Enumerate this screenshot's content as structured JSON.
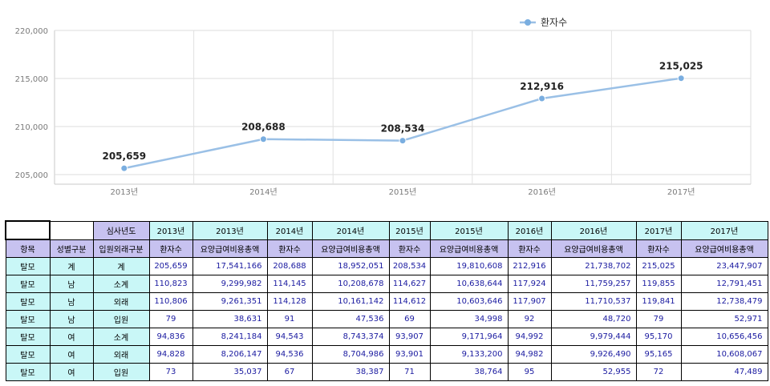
{
  "chart_data": {
    "type": "line",
    "x": [
      "2013년",
      "2014년",
      "2015년",
      "2016년",
      "2017년"
    ],
    "series": [
      {
        "name": "환자수",
        "values": [
          205659,
          208688,
          208534,
          212916,
          215025
        ]
      }
    ],
    "data_labels": [
      "205,659",
      "208,688",
      "208,534",
      "212,916",
      "215,025"
    ],
    "ylim": [
      204000,
      220000
    ],
    "yticks": [
      205000,
      210000,
      215000,
      220000
    ],
    "ytick_labels": [
      "205,000",
      "210,000",
      "215,000",
      "220,000"
    ],
    "legend": "top-right",
    "grid": true,
    "line_color": "#9ac0e6",
    "marker_color": "#7aaee0"
  },
  "table": {
    "header_row1": [
      "",
      "",
      "심사년도",
      "2013년",
      "2013년",
      "2014년",
      "2014년",
      "2015년",
      "2015년",
      "2016년",
      "2016년",
      "2017년",
      "2017년"
    ],
    "header_row2": [
      "항목",
      "성별구분",
      "입원외래구분",
      "환자수",
      "요양급여비용총액",
      "환자수",
      "요양급여비용총액",
      "환자수",
      "요양급여비용총액",
      "환자수",
      "요양급여비용총액",
      "환자수",
      "요양급여비용총액"
    ],
    "rows": [
      [
        "탈모",
        "계",
        "계",
        "205,659",
        "17,541,166",
        "208,688",
        "18,952,051",
        "208,534",
        "19,810,608",
        "212,916",
        "21,738,702",
        "215,025",
        "23,447,907"
      ],
      [
        "탈모",
        "남",
        "소계",
        "110,823",
        "9,299,982",
        "114,145",
        "10,208,678",
        "114,627",
        "10,638,644",
        "117,924",
        "11,759,257",
        "119,855",
        "12,791,451"
      ],
      [
        "탈모",
        "남",
        "외래",
        "110,806",
        "9,261,351",
        "114,128",
        "10,161,142",
        "114,612",
        "10,603,646",
        "117,907",
        "11,710,537",
        "119,841",
        "12,738,479"
      ],
      [
        "탈모",
        "남",
        "입원",
        "79",
        "38,631",
        "91",
        "47,536",
        "69",
        "34,998",
        "92",
        "48,720",
        "79",
        "52,971"
      ],
      [
        "탈모",
        "여",
        "소계",
        "94,836",
        "8,241,184",
        "94,543",
        "8,743,374",
        "93,907",
        "9,171,964",
        "94,992",
        "9,979,444",
        "95,170",
        "10,656,456"
      ],
      [
        "탈모",
        "여",
        "외래",
        "94,828",
        "8,206,147",
        "94,536",
        "8,704,986",
        "93,901",
        "9,133,200",
        "94,982",
        "9,926,490",
        "95,165",
        "10,608,067"
      ],
      [
        "탈모",
        "여",
        "입원",
        "73",
        "35,037",
        "67",
        "38,387",
        "71",
        "38,764",
        "95",
        "52,955",
        "72",
        "47,489"
      ]
    ]
  }
}
